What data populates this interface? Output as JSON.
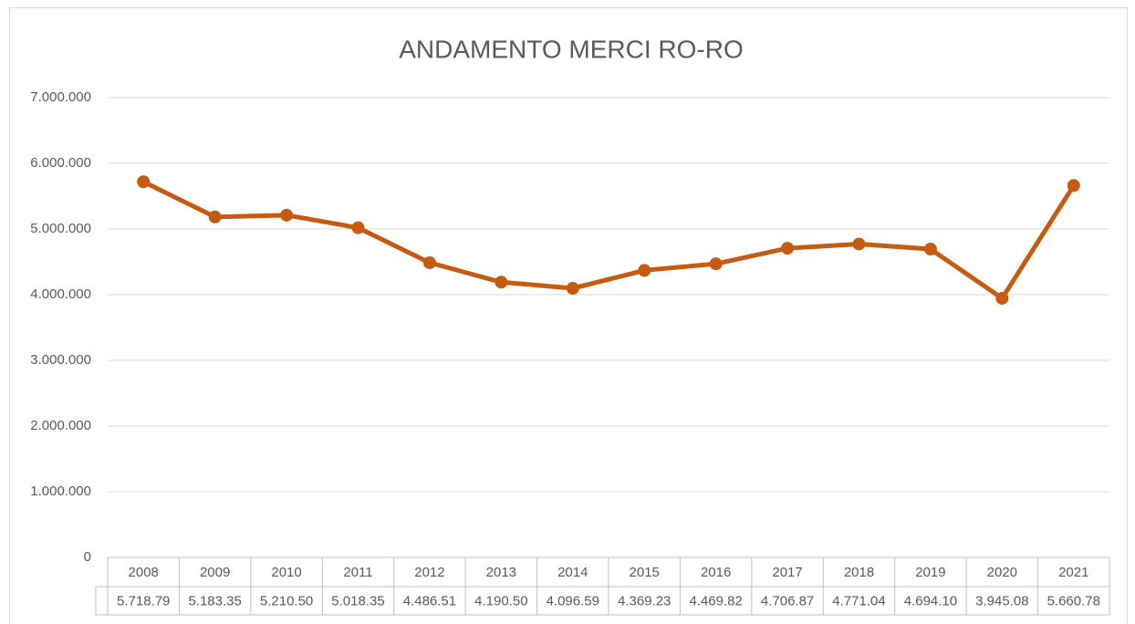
{
  "chart_data": {
    "type": "line",
    "title": "ANDAMENTO MERCI RO-RO",
    "categories": [
      "2008",
      "2009",
      "2010",
      "2011",
      "2012",
      "2013",
      "2014",
      "2015",
      "2016",
      "2017",
      "2018",
      "2019",
      "2020",
      "2021"
    ],
    "series": [
      {
        "color": "#c55a11",
        "values": [
          5718790,
          5183350,
          5210500,
          5018350,
          4486510,
          4190500,
          4096590,
          4369230,
          4469820,
          4706870,
          4771040,
          4694100,
          3945080,
          5660780
        ],
        "value_labels": [
          "5.718.79",
          "5.183.35",
          "5.210.50",
          "5.018.35",
          "4.486.51",
          "4.190.50",
          "4.096.59",
          "4.369.23",
          "4.469.82",
          "4.706.87",
          "4.771.04",
          "4.694.10",
          "3.945.08",
          "5.660.78"
        ]
      }
    ],
    "ylim": [
      0,
      7000000
    ],
    "yticks": [
      0,
      {
        "value": 1000000,
        "label": "1.000.000"
      },
      {
        "value": 2000000,
        "label": "2.000.000"
      },
      {
        "value": 3000000,
        "label": "3.000.000"
      },
      {
        "value": 4000000,
        "label": "4.000.000"
      },
      {
        "value": 5000000,
        "label": "5.000.000"
      },
      {
        "value": 6000000,
        "label": "6.000.000"
      },
      {
        "value": 7000000,
        "label": "7.000.000"
      }
    ],
    "grid": true
  }
}
